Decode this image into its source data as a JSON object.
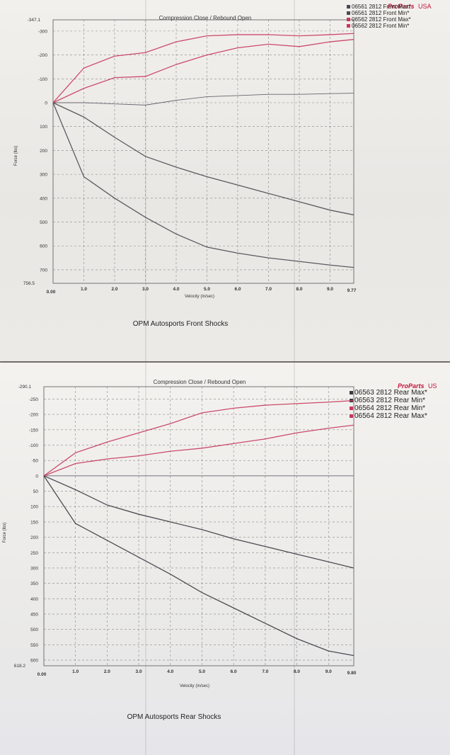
{
  "chart_data": [
    {
      "type": "line",
      "title": "Compression Close / Rebound Open",
      "caption": "OPM Autosports Front Shocks",
      "brand": "ProParts",
      "brand_suffix": "USA",
      "xlabel": "Velocity (in/sec)",
      "ylabel": "Force (lbs)",
      "xlim": [
        0,
        9.77
      ],
      "ylim": [
        -347.1,
        756.5
      ],
      "y_end_labels": {
        "top": "-347.1",
        "bottom": "756.5"
      },
      "x_end_labels": {
        "start": "0.00",
        "end": "9.77"
      },
      "x_ticks": [
        1.0,
        2.0,
        3.0,
        4.0,
        5.0,
        6.0,
        7.0,
        8.0,
        9.0
      ],
      "x_tick_labels": [
        "1.0",
        "2.0",
        "3.0",
        "4.0",
        "5.0",
        "6.0",
        "7.0",
        "8.0",
        "9.0"
      ],
      "y_ticks": [
        -300,
        -200,
        -100,
        0,
        100,
        200,
        300,
        400,
        500,
        600,
        700
      ],
      "y_tick_labels": [
        "-300",
        "-200",
        "-100",
        "0",
        "100",
        "200",
        "300",
        "400",
        "500",
        "600",
        "700"
      ],
      "grid": true,
      "legend": "top-right",
      "series": [
        {
          "name": "06561 2812 Front Max*",
          "color": "#4a4a52",
          "x": [
            0,
            1,
            2,
            3,
            4,
            5,
            6,
            7,
            8,
            9,
            9.77
          ],
          "y": [
            0,
            310,
            400,
            480,
            550,
            605,
            630,
            650,
            665,
            680,
            690
          ]
        },
        {
          "name": "06561 2812 Front Min*",
          "color": "#4a4a52",
          "x": [
            0,
            1,
            2,
            3,
            4,
            5,
            6,
            7,
            8,
            9,
            9.77
          ],
          "y": [
            0,
            60,
            145,
            225,
            270,
            310,
            345,
            380,
            415,
            450,
            470
          ]
        },
        {
          "name": "06562 2812 Front Max*",
          "color": "#c8385e",
          "x": [
            0,
            1,
            2,
            3,
            4,
            5,
            6,
            7,
            8,
            9,
            9.77
          ],
          "y": [
            0,
            -145,
            -195,
            -210,
            -255,
            -280,
            -285,
            -285,
            -280,
            -285,
            -290
          ]
        },
        {
          "name": "06562 2812 Front Min*",
          "color": "#c8385e",
          "x": [
            0,
            1,
            2,
            3,
            4,
            5,
            6,
            7,
            8,
            9,
            9.77
          ],
          "y": [
            0,
            -60,
            -105,
            -110,
            -160,
            -200,
            -230,
            -245,
            -235,
            -255,
            -265
          ]
        }
      ],
      "extra_curves": [
        {
          "color": "#66666e",
          "x": [
            0,
            1,
            2,
            3,
            4,
            5,
            6,
            7,
            8,
            9,
            9.77
          ],
          "y": [
            0,
            0,
            5,
            10,
            -10,
            -25,
            -30,
            -35,
            -35,
            -38,
            -40
          ]
        }
      ]
    },
    {
      "type": "line",
      "title": "Compression Close / Rebound Open",
      "caption": "OPM Autosports Rear Shocks",
      "brand": "ProParts",
      "brand_suffix": "US",
      "xlabel": "Velocity (in/sec)",
      "ylabel": "Force (lbs)",
      "xlim": [
        0,
        9.8
      ],
      "ylim": [
        -290.1,
        618.2
      ],
      "y_end_labels": {
        "top": "-290.1",
        "bottom": "618.2"
      },
      "x_end_labels": {
        "start": "0.00",
        "end": "9.80"
      },
      "x_ticks": [
        1.0,
        2.0,
        3.0,
        4.0,
        5.0,
        6.0,
        7.0,
        8.0,
        9.0
      ],
      "x_tick_labels": [
        "1.0",
        "2.0",
        "3.0",
        "4.0",
        "5.0",
        "6.0",
        "7.0",
        "8.0",
        "9.0"
      ],
      "y_ticks": [
        -250,
        -200,
        -150,
        -100,
        -50,
        0,
        50,
        100,
        150,
        200,
        250,
        300,
        350,
        400,
        450,
        500,
        550,
        600
      ],
      "y_tick_labels": [
        "-250",
        "-200",
        "-150",
        "-100",
        "-50",
        "0",
        "50",
        "100",
        "150",
        "200",
        "250",
        "300",
        "350",
        "400",
        "450",
        "500",
        "550",
        "600"
      ],
      "grid": true,
      "legend": "top-right",
      "series": [
        {
          "name": "06563 2812 Rear Max*",
          "color": "#3a3a42",
          "x": [
            0,
            1,
            2,
            3,
            4,
            5,
            6,
            7,
            8,
            9,
            9.8
          ],
          "y": [
            0,
            155,
            210,
            265,
            320,
            380,
            430,
            480,
            530,
            570,
            585
          ]
        },
        {
          "name": "06563 2812 Rear Min*",
          "color": "#3a3a42",
          "x": [
            0,
            1,
            2,
            3,
            4,
            5,
            6,
            7,
            8,
            9,
            9.8
          ],
          "y": [
            0,
            45,
            95,
            125,
            150,
            175,
            205,
            230,
            255,
            280,
            300
          ]
        },
        {
          "name": "06564 2812 Rear Min*",
          "color": "#c8385e",
          "x": [
            0,
            1,
            2,
            3,
            4,
            5,
            6,
            7,
            8,
            9,
            9.8
          ],
          "y": [
            0,
            -40,
            -55,
            -65,
            -80,
            -90,
            -105,
            -120,
            -140,
            -155,
            -165
          ]
        },
        {
          "name": "06564 2812 Rear Max*",
          "color": "#c8385e",
          "x": [
            0,
            1,
            2,
            3,
            4,
            5,
            6,
            7,
            8,
            9,
            9.8
          ],
          "y": [
            0,
            -75,
            -110,
            -140,
            -170,
            -205,
            -220,
            -230,
            -235,
            -240,
            -245
          ]
        }
      ],
      "extra_curves": [
        {
          "color": "#66666e",
          "x": [
            0,
            1,
            2,
            3,
            4,
            5,
            6,
            7,
            8,
            9,
            9.8
          ],
          "y": [
            0,
            0,
            0,
            0,
            0,
            0,
            0,
            0,
            0,
            0,
            0
          ]
        }
      ]
    }
  ]
}
